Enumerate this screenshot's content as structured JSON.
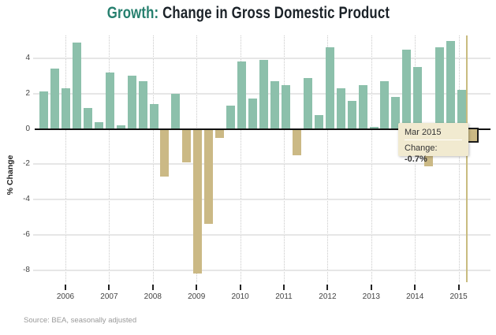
{
  "title": {
    "highlight": "Growth:",
    "rest": " Change in Gross Domestic Product"
  },
  "source": "Source: BEA, seasonally adjusted",
  "tooltip": {
    "date": "Mar 2015",
    "label": "Change: ",
    "value": "-0.7%"
  },
  "colors": {
    "positive_bar": "#8cc0ab",
    "negative_bar": "#cbb985",
    "highlight_border": "#1b1b1b",
    "crosshair": "#c9bc80",
    "zero_line": "#111111",
    "gridline": "#e6e6e6",
    "title_highlight": "#27806f",
    "title_text": "#1b2228",
    "tooltip_bg": "#f1ead0"
  },
  "chart_data": {
    "type": "bar",
    "title": "Growth: Change in Gross Domestic Product",
    "xlabel": "",
    "ylabel": "% Change",
    "ylim": [
      -8.8,
      5.3
    ],
    "grid": true,
    "legend": false,
    "y_ticks": [
      4,
      2,
      0,
      -2,
      -4,
      -6,
      -8
    ],
    "year_ticks": [
      "2006",
      "2007",
      "2008",
      "2009",
      "2010",
      "2011",
      "2012",
      "2013",
      "2014",
      "2015"
    ],
    "x": [
      "Jun 2005",
      "Sep 2005",
      "Dec 2005",
      "Mar 2006",
      "Jun 2006",
      "Sep 2006",
      "Dec 2006",
      "Mar 2007",
      "Jun 2007",
      "Sep 2007",
      "Dec 2007",
      "Mar 2008",
      "Jun 2008",
      "Sep 2008",
      "Dec 2008",
      "Mar 2009",
      "Jun 2009",
      "Sep 2009",
      "Dec 2009",
      "Mar 2010",
      "Jun 2010",
      "Sep 2010",
      "Dec 2010",
      "Mar 2011",
      "Jun 2011",
      "Sep 2011",
      "Dec 2011",
      "Mar 2012",
      "Jun 2012",
      "Sep 2012",
      "Dec 2012",
      "Mar 2013",
      "Jun 2013",
      "Sep 2013",
      "Dec 2013",
      "Mar 2014",
      "Jun 2014",
      "Sep 2014",
      "Dec 2014",
      "Mar 2015"
    ],
    "values": [
      2.1,
      3.4,
      2.3,
      4.9,
      1.2,
      0.4,
      3.2,
      0.2,
      3.0,
      2.7,
      1.4,
      -2.7,
      2.0,
      -1.9,
      -8.2,
      -5.4,
      -0.5,
      1.3,
      3.8,
      1.7,
      3.9,
      2.7,
      2.5,
      -1.5,
      2.9,
      0.8,
      4.6,
      2.3,
      1.6,
      2.5,
      0.1,
      2.7,
      1.8,
      4.5,
      3.5,
      -2.1,
      4.6,
      5.0,
      2.2,
      -0.7
    ],
    "highlighted_index": 39,
    "highlighted_label": "Mar 2015",
    "highlighted_value": -0.7
  }
}
